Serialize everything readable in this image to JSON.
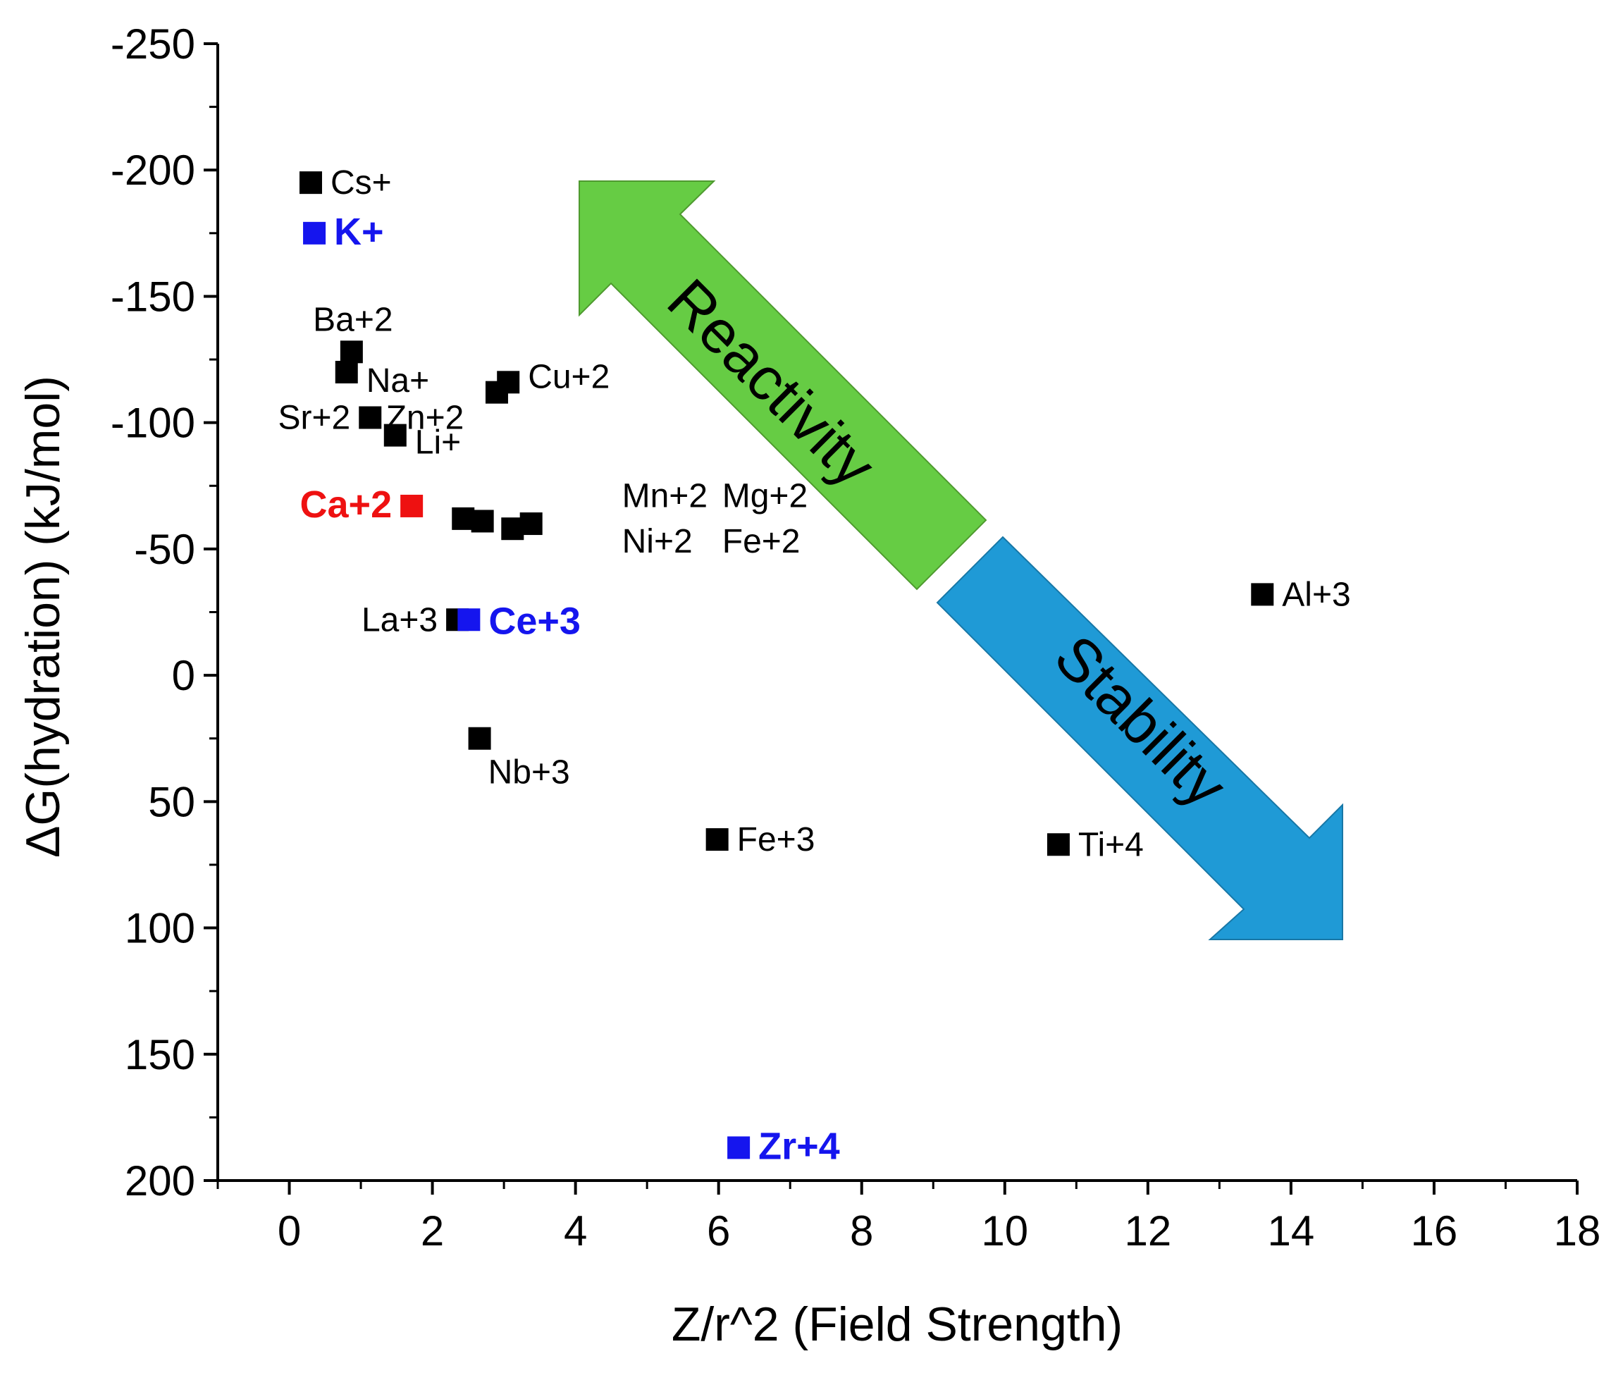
{
  "chart_data": {
    "type": "scatter",
    "title": "",
    "xlabel": "Z/r^2 (Field Strength)",
    "ylabel": "ΔG(hydration) (kJ/mol)",
    "xlim": [
      -1,
      18
    ],
    "ylim": [
      -250,
      200
    ],
    "y_inverted": true,
    "xticks": [
      0,
      2,
      4,
      6,
      8,
      10,
      12,
      14,
      16,
      18
    ],
    "yticks": [
      -250,
      -200,
      -150,
      -100,
      -50,
      0,
      50,
      100,
      150,
      200
    ],
    "grid": false,
    "colors": {
      "default": "#000000",
      "red": "#ee1111",
      "blue": "#1515ee"
    },
    "points": [
      {
        "label": "Cs+",
        "x": 0.3,
        "y": -195,
        "color": "#000000",
        "highlight": false,
        "anchor": "right",
        "label_dy": 0
      },
      {
        "label": "K+",
        "x": 0.35,
        "y": -175,
        "color": "#1515ee",
        "highlight": true,
        "anchor": "right",
        "label_dy": 0
      },
      {
        "label": "Ba+2",
        "x": 0.87,
        "y": -128,
        "color": "#000000",
        "highlight": false,
        "anchor": "above",
        "label_dy": 0
      },
      {
        "label": "Na+",
        "x": 0.8,
        "y": -120,
        "color": "#000000",
        "highlight": false,
        "anchor": "right",
        "label_dy": 12
      },
      {
        "label": "Sr+2",
        "x": 1.13,
        "y": -102,
        "color": "#000000",
        "highlight": false,
        "anchor": "left",
        "label_dy": 0
      },
      {
        "label": "Li+",
        "x": 1.48,
        "y": -95,
        "color": "#000000",
        "highlight": false,
        "anchor": "right",
        "label_dy": 10
      },
      {
        "label": "Ca+2",
        "x": 1.71,
        "y": -67,
        "color": "#ee1111",
        "highlight": true,
        "anchor": "left",
        "label_dy": 0
      },
      {
        "label": "Cu+2",
        "x": 3.06,
        "y": -116,
        "color": "#000000",
        "highlight": false,
        "anchor": "right",
        "label_dy": -8
      },
      {
        "label": "Zn+2",
        "x": 2.9,
        "y": -112,
        "color": "#000000",
        "highlight": false,
        "anchor": "custom",
        "label_dx": 1.35,
        "label_dy_data": -102
      },
      {
        "label": "Mn+2",
        "x": 2.43,
        "y": -62,
        "color": "#000000",
        "highlight": false,
        "anchor": "custom",
        "label_dx": 4.65,
        "label_dy_data": -71
      },
      {
        "label": "Ni+2",
        "x": 2.7,
        "y": -61,
        "color": "#000000",
        "highlight": false,
        "anchor": "custom",
        "label_dx": 4.65,
        "label_dy_data": -53
      },
      {
        "label": "Mg+2",
        "x": 3.12,
        "y": -58,
        "color": "#000000",
        "highlight": false,
        "anchor": "custom",
        "label_dx": 6.05,
        "label_dy_data": -71
      },
      {
        "label": "Fe+2",
        "x": 3.38,
        "y": -60,
        "color": "#000000",
        "highlight": false,
        "anchor": "custom",
        "label_dx": 6.05,
        "label_dy_data": -53
      },
      {
        "label": "La+3",
        "x": 2.35,
        "y": -22,
        "color": "#000000",
        "highlight": false,
        "anchor": "left",
        "label_dy": 0
      },
      {
        "label": "Ce+3",
        "x": 2.51,
        "y": -22,
        "color": "#1515ee",
        "highlight": true,
        "anchor": "right",
        "label_dy": 4
      },
      {
        "label": "Nb+3",
        "x": 2.66,
        "y": 25,
        "color": "#000000",
        "highlight": false,
        "anchor": "below",
        "label_dy": 0
      },
      {
        "label": "Fe+3",
        "x": 5.98,
        "y": 65,
        "color": "#000000",
        "highlight": false,
        "anchor": "right",
        "label_dy": 0
      },
      {
        "label": "Ti+4",
        "x": 10.75,
        "y": 67,
        "color": "#000000",
        "highlight": false,
        "anchor": "right",
        "label_dy": 0
      },
      {
        "label": "Al+3",
        "x": 13.6,
        "y": -32,
        "color": "#000000",
        "highlight": false,
        "anchor": "right",
        "label_dy": 0
      },
      {
        "label": "Zr+4",
        "x": 6.28,
        "y": 187,
        "color": "#1515ee",
        "highlight": true,
        "anchor": "right",
        "label_dy": 0
      }
    ],
    "annotations": [
      {
        "text": "Reactivity",
        "color": "#66cc44",
        "direction": "up-left"
      },
      {
        "text": "Stability",
        "color": "#1f9ad6",
        "direction": "down-right"
      }
    ]
  }
}
